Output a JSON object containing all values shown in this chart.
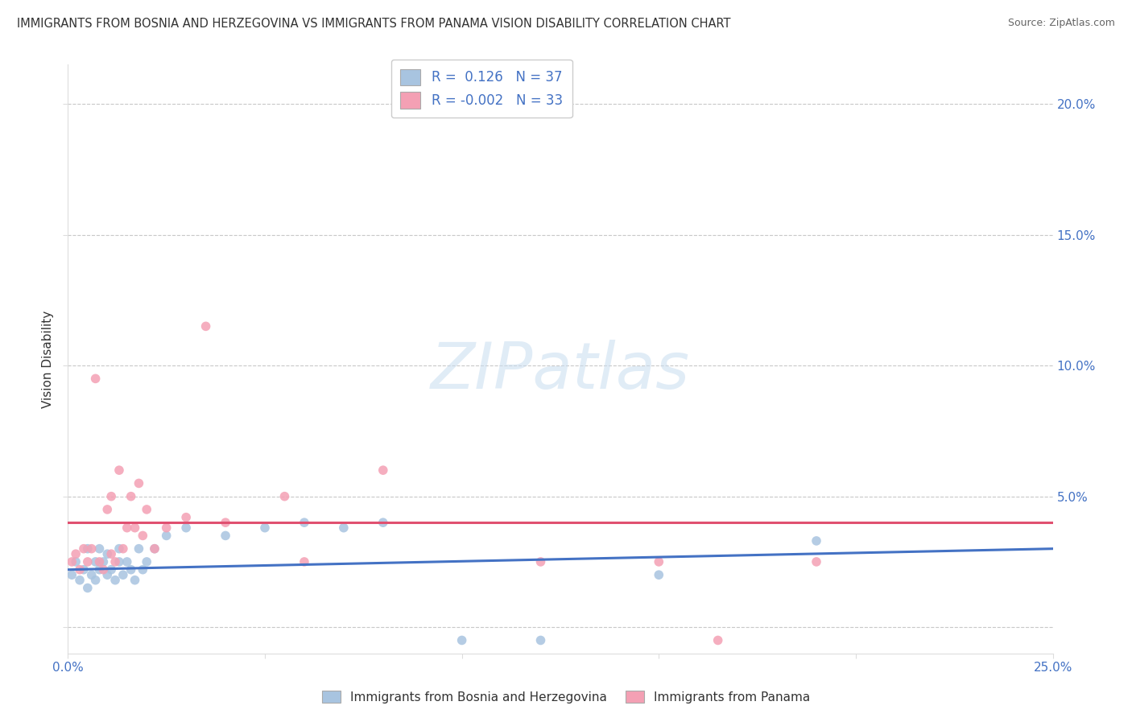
{
  "title": "IMMIGRANTS FROM BOSNIA AND HERZEGOVINA VS IMMIGRANTS FROM PANAMA VISION DISABILITY CORRELATION CHART",
  "source": "Source: ZipAtlas.com",
  "ylabel": "Vision Disability",
  "xlim": [
    0.0,
    0.25
  ],
  "ylim": [
    -0.01,
    0.215
  ],
  "yticks": [
    0.0,
    0.05,
    0.1,
    0.15,
    0.2
  ],
  "ytick_labels_right": [
    "",
    "5.0%",
    "10.0%",
    "15.0%",
    "20.0%"
  ],
  "xticks": [
    0.0,
    0.05,
    0.1,
    0.15,
    0.2,
    0.25
  ],
  "xtick_labels": [
    "0.0%",
    "",
    "",
    "",
    "",
    "25.0%"
  ],
  "blue_R": 0.126,
  "blue_N": 37,
  "pink_R": -0.002,
  "pink_N": 33,
  "blue_color": "#a8c4e0",
  "pink_color": "#f4a0b4",
  "line_blue": "#4472c4",
  "line_pink": "#e05070",
  "text_color": "#4472c4",
  "grid_color": "#c8c8c8",
  "watermark": "ZIPatlas",
  "blue_scatter_x": [
    0.001,
    0.002,
    0.003,
    0.004,
    0.005,
    0.005,
    0.006,
    0.007,
    0.007,
    0.008,
    0.008,
    0.009,
    0.01,
    0.01,
    0.011,
    0.012,
    0.013,
    0.013,
    0.014,
    0.015,
    0.016,
    0.017,
    0.018,
    0.019,
    0.02,
    0.022,
    0.025,
    0.03,
    0.04,
    0.05,
    0.06,
    0.07,
    0.08,
    0.1,
    0.12,
    0.15,
    0.19
  ],
  "blue_scatter_y": [
    0.02,
    0.025,
    0.018,
    0.022,
    0.015,
    0.03,
    0.02,
    0.025,
    0.018,
    0.022,
    0.03,
    0.025,
    0.02,
    0.028,
    0.022,
    0.018,
    0.025,
    0.03,
    0.02,
    0.025,
    0.022,
    0.018,
    0.03,
    0.022,
    0.025,
    0.03,
    0.035,
    0.038,
    0.035,
    0.038,
    0.04,
    0.038,
    0.04,
    -0.005,
    -0.005,
    0.02,
    0.033
  ],
  "pink_scatter_x": [
    0.001,
    0.002,
    0.003,
    0.004,
    0.005,
    0.006,
    0.007,
    0.008,
    0.009,
    0.01,
    0.011,
    0.011,
    0.012,
    0.013,
    0.014,
    0.015,
    0.016,
    0.017,
    0.018,
    0.019,
    0.02,
    0.022,
    0.025,
    0.03,
    0.035,
    0.04,
    0.055,
    0.06,
    0.08,
    0.12,
    0.15,
    0.165,
    0.19
  ],
  "pink_scatter_y": [
    0.025,
    0.028,
    0.022,
    0.03,
    0.025,
    0.03,
    0.095,
    0.025,
    0.022,
    0.045,
    0.028,
    0.05,
    0.025,
    0.06,
    0.03,
    0.038,
    0.05,
    0.038,
    0.055,
    0.035,
    0.045,
    0.03,
    0.038,
    0.042,
    0.115,
    0.04,
    0.05,
    0.025,
    0.06,
    0.025,
    0.025,
    -0.005,
    0.025
  ],
  "blue_line_x0": 0.0,
  "blue_line_x1": 0.25,
  "blue_line_y0": 0.022,
  "blue_line_y1": 0.03,
  "pink_line_x0": 0.0,
  "pink_line_x1": 0.25,
  "pink_line_y0": 0.04,
  "pink_line_y1": 0.04
}
